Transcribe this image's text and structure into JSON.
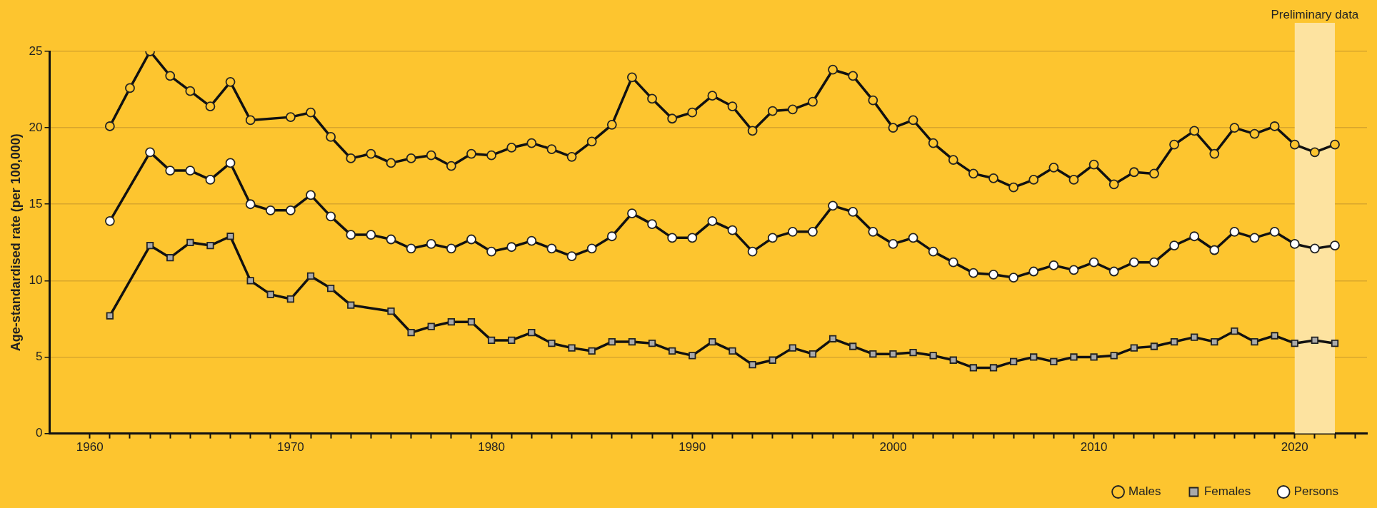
{
  "chart_data": {
    "type": "line",
    "ylabel": "Age-standardised rate (per 100,000)",
    "x": [
      1961,
      1962,
      1963,
      1964,
      1965,
      1966,
      1967,
      1968,
      1969,
      1970,
      1971,
      1972,
      1973,
      1974,
      1975,
      1976,
      1977,
      1978,
      1979,
      1980,
      1981,
      1982,
      1983,
      1984,
      1985,
      1986,
      1987,
      1988,
      1989,
      1990,
      1991,
      1992,
      1993,
      1994,
      1995,
      1996,
      1997,
      1998,
      1999,
      2000,
      2001,
      2002,
      2003,
      2004,
      2005,
      2006,
      2007,
      2008,
      2009,
      2010,
      2011,
      2012,
      2013,
      2014,
      2015,
      2016,
      2017,
      2018,
      2019,
      2020,
      2021,
      2022
    ],
    "series": [
      {
        "name": "Males",
        "color": "#fdc52f",
        "marker": "circle",
        "values": [
          20.1,
          22.6,
          25.0,
          23.4,
          22.4,
          21.4,
          23.0,
          20.5,
          null,
          20.7,
          21.0,
          19.4,
          18.0,
          18.3,
          17.7,
          18.0,
          18.2,
          17.5,
          18.3,
          18.2,
          18.7,
          19.0,
          18.6,
          18.1,
          19.1,
          20.2,
          23.3,
          21.9,
          20.6,
          21.0,
          22.1,
          21.4,
          19.8,
          21.1,
          21.2,
          21.7,
          23.8,
          23.4,
          21.8,
          20.0,
          20.5,
          19.0,
          17.9,
          17.0,
          16.7,
          16.1,
          16.6,
          17.4,
          16.6,
          17.6,
          16.3,
          17.1,
          17.0,
          18.9,
          19.8,
          18.3,
          20.0,
          19.6,
          20.1,
          18.9,
          18.4,
          18.9
        ]
      },
      {
        "name": "Females",
        "color": "#a9a9a9",
        "marker": "square",
        "values": [
          7.7,
          null,
          12.3,
          11.5,
          12.5,
          12.3,
          12.9,
          10.0,
          9.1,
          8.8,
          10.3,
          9.5,
          8.4,
          null,
          8.0,
          6.6,
          7.0,
          7.3,
          7.3,
          6.1,
          6.1,
          6.6,
          5.9,
          5.6,
          5.4,
          6.0,
          6.0,
          5.9,
          5.4,
          5.1,
          6.0,
          5.4,
          4.5,
          4.8,
          5.6,
          5.2,
          6.2,
          5.7,
          5.2,
          5.2,
          5.3,
          5.1,
          4.8,
          4.3,
          4.3,
          4.7,
          5.0,
          4.7,
          5.0,
          5.0,
          5.1,
          5.6,
          5.7,
          6.0,
          6.3,
          6.0,
          6.7,
          6.0,
          6.4,
          5.9,
          6.1,
          5.9
        ]
      },
      {
        "name": "Persons",
        "color": "#ffffff",
        "marker": "circle",
        "values": [
          13.9,
          null,
          18.4,
          17.2,
          17.2,
          16.6,
          17.7,
          15.0,
          14.6,
          14.6,
          15.6,
          14.2,
          13.0,
          13.0,
          12.7,
          12.1,
          12.4,
          12.1,
          12.7,
          11.9,
          12.2,
          12.6,
          12.1,
          11.6,
          12.1,
          12.9,
          14.4,
          13.7,
          12.8,
          12.8,
          13.9,
          13.3,
          11.9,
          12.8,
          13.2,
          13.2,
          14.9,
          14.5,
          13.2,
          12.4,
          12.8,
          11.9,
          11.2,
          10.5,
          10.4,
          10.2,
          10.6,
          11.0,
          10.7,
          11.2,
          10.6,
          11.2,
          11.2,
          12.3,
          12.9,
          12.0,
          13.2,
          12.8,
          13.2,
          12.4,
          12.1,
          12.3
        ]
      }
    ],
    "xlim": [
      1958,
      2023.6
    ],
    "xticks": [
      1960,
      {
        "value": 1961,
        "label": null
      },
      {
        "value": 1962,
        "label": null
      },
      {
        "value": 1963,
        "label": null
      },
      {
        "value": 1964,
        "label": null
      },
      {
        "value": 1965,
        "label": null
      },
      {
        "value": 1966,
        "label": null
      },
      {
        "value": 1967,
        "label": null
      },
      {
        "value": 1968,
        "label": null
      },
      {
        "value": 1969,
        "label": null
      },
      1970,
      {
        "value": 1971,
        "label": null
      },
      {
        "value": 1972,
        "label": null
      },
      {
        "value": 1973,
        "label": null
      },
      {
        "value": 1974,
        "label": null
      },
      {
        "value": 1975,
        "label": null
      },
      {
        "value": 1976,
        "label": null
      },
      {
        "value": 1977,
        "label": null
      },
      {
        "value": 1978,
        "label": null
      },
      {
        "value": 1979,
        "label": null
      },
      1980,
      {
        "value": 1981,
        "label": null
      },
      {
        "value": 1982,
        "label": null
      },
      {
        "value": 1983,
        "label": null
      },
      {
        "value": 1984,
        "label": null
      },
      {
        "value": 1985,
        "label": null
      },
      {
        "value": 1986,
        "label": null
      },
      {
        "value": 1987,
        "label": null
      },
      {
        "value": 1988,
        "label": null
      },
      {
        "value": 1989,
        "label": null
      },
      1990,
      {
        "value": 1991,
        "label": null
      },
      {
        "value": 1992,
        "label": null
      },
      {
        "value": 1993,
        "label": null
      },
      {
        "value": 1994,
        "label": null
      },
      {
        "value": 1995,
        "label": null
      },
      {
        "value": 1996,
        "label": null
      },
      {
        "value": 1997,
        "label": null
      },
      {
        "value": 1998,
        "label": null
      },
      {
        "value": 1999,
        "label": null
      },
      2000,
      {
        "value": 2001,
        "label": null
      },
      {
        "value": 2002,
        "label": null
      },
      {
        "value": 2003,
        "label": null
      },
      {
        "value": 2004,
        "label": null
      },
      {
        "value": 2005,
        "label": null
      },
      {
        "value": 2006,
        "label": null
      },
      {
        "value": 2007,
        "label": null
      },
      {
        "value": 2008,
        "label": null
      },
      {
        "value": 2009,
        "label": null
      },
      2010,
      {
        "value": 2011,
        "label": null
      },
      {
        "value": 2012,
        "label": null
      },
      {
        "value": 2013,
        "label": null
      },
      {
        "value": 2014,
        "label": null
      },
      {
        "value": 2015,
        "label": null
      },
      {
        "value": 2016,
        "label": null
      },
      {
        "value": 2017,
        "label": null
      },
      {
        "value": 2018,
        "label": null
      },
      {
        "value": 2019,
        "label": null
      },
      2020,
      {
        "value": 2021,
        "label": null
      },
      {
        "value": 2022,
        "label": null
      },
      {
        "value": 2023,
        "label": null
      }
    ],
    "ylim": [
      0,
      25
    ],
    "yticks": [
      0,
      5,
      10,
      15,
      20,
      25
    ],
    "bands": [
      {
        "axis": "x",
        "from": 2020,
        "to": 2022,
        "label": "Preliminary data",
        "color": "#fde3a0"
      }
    ],
    "grid": "y",
    "legend": "bottom right",
    "line_style": "solid"
  }
}
